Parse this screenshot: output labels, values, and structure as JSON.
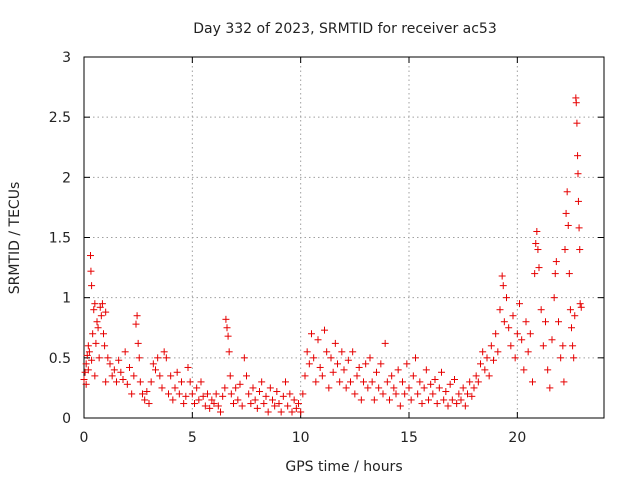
{
  "chart_data": {
    "type": "scatter",
    "title": "Day 332 of 2023, SRMTID for receiver ac53",
    "xlabel": "GPS time / hours",
    "ylabel": "SRMTID / TECUs",
    "xlim": [
      0,
      24
    ],
    "ylim": [
      0,
      3
    ],
    "x_ticks": [
      0,
      5,
      10,
      15,
      20
    ],
    "x_tick_labels": [
      "0",
      "5",
      "10",
      "15",
      "20"
    ],
    "y_ticks": [
      0,
      0.5,
      1,
      1.5,
      2,
      2.5,
      3
    ],
    "y_tick_labels": [
      "0",
      "0.5",
      "1",
      "1.5",
      "2",
      "2.5",
      "3"
    ],
    "grid": true,
    "marker": "+",
    "color": "#e60000",
    "series": [
      {
        "name": "SRMTID",
        "points": [
          [
            0.0,
            0.32
          ],
          [
            0.05,
            0.38
          ],
          [
            0.1,
            0.45
          ],
          [
            0.1,
            0.28
          ],
          [
            0.15,
            0.52
          ],
          [
            0.2,
            0.6
          ],
          [
            0.2,
            0.4
          ],
          [
            0.25,
            0.55
          ],
          [
            0.3,
            1.35
          ],
          [
            0.32,
            1.22
          ],
          [
            0.35,
            1.1
          ],
          [
            0.35,
            0.48
          ],
          [
            0.4,
            0.7
          ],
          [
            0.45,
            0.9
          ],
          [
            0.5,
            0.95
          ],
          [
            0.5,
            0.35
          ],
          [
            0.55,
            0.62
          ],
          [
            0.6,
            0.8
          ],
          [
            0.65,
            0.75
          ],
          [
            0.7,
            0.5
          ],
          [
            0.75,
            0.92
          ],
          [
            0.8,
            0.85
          ],
          [
            0.85,
            0.95
          ],
          [
            0.9,
            0.7
          ],
          [
            0.95,
            0.6
          ],
          [
            1.0,
            0.88
          ],
          [
            1.0,
            0.3
          ],
          [
            1.1,
            0.5
          ],
          [
            1.2,
            0.45
          ],
          [
            1.3,
            0.35
          ],
          [
            1.4,
            0.4
          ],
          [
            1.5,
            0.3
          ],
          [
            1.6,
            0.48
          ],
          [
            1.7,
            0.38
          ],
          [
            1.8,
            0.32
          ],
          [
            1.9,
            0.55
          ],
          [
            2.0,
            0.28
          ],
          [
            2.1,
            0.42
          ],
          [
            2.2,
            0.2
          ],
          [
            2.3,
            0.35
          ],
          [
            2.4,
            0.78
          ],
          [
            2.45,
            0.85
          ],
          [
            2.5,
            0.62
          ],
          [
            2.55,
            0.5
          ],
          [
            2.6,
            0.3
          ],
          [
            2.7,
            0.2
          ],
          [
            2.8,
            0.15
          ],
          [
            2.9,
            0.22
          ],
          [
            3.0,
            0.12
          ],
          [
            3.1,
            0.3
          ],
          [
            3.2,
            0.45
          ],
          [
            3.3,
            0.4
          ],
          [
            3.4,
            0.5
          ],
          [
            3.5,
            0.35
          ],
          [
            3.6,
            0.25
          ],
          [
            3.7,
            0.55
          ],
          [
            3.8,
            0.5
          ],
          [
            3.9,
            0.2
          ],
          [
            4.0,
            0.35
          ],
          [
            4.1,
            0.15
          ],
          [
            4.2,
            0.25
          ],
          [
            4.3,
            0.38
          ],
          [
            4.4,
            0.2
          ],
          [
            4.5,
            0.3
          ],
          [
            4.6,
            0.12
          ],
          [
            4.7,
            0.18
          ],
          [
            4.8,
            0.42
          ],
          [
            4.9,
            0.3
          ],
          [
            5.0,
            0.2
          ],
          [
            5.1,
            0.12
          ],
          [
            5.2,
            0.25
          ],
          [
            5.3,
            0.15
          ],
          [
            5.4,
            0.3
          ],
          [
            5.5,
            0.18
          ],
          [
            5.6,
            0.1
          ],
          [
            5.7,
            0.2
          ],
          [
            5.8,
            0.08
          ],
          [
            5.9,
            0.15
          ],
          [
            6.0,
            0.12
          ],
          [
            6.1,
            0.2
          ],
          [
            6.2,
            0.1
          ],
          [
            6.3,
            0.05
          ],
          [
            6.4,
            0.18
          ],
          [
            6.5,
            0.25
          ],
          [
            6.55,
            0.82
          ],
          [
            6.6,
            0.75
          ],
          [
            6.65,
            0.68
          ],
          [
            6.7,
            0.55
          ],
          [
            6.75,
            0.35
          ],
          [
            6.8,
            0.2
          ],
          [
            6.9,
            0.12
          ],
          [
            7.0,
            0.25
          ],
          [
            7.1,
            0.15
          ],
          [
            7.2,
            0.28
          ],
          [
            7.3,
            0.1
          ],
          [
            7.4,
            0.5
          ],
          [
            7.5,
            0.35
          ],
          [
            7.6,
            0.2
          ],
          [
            7.7,
            0.12
          ],
          [
            7.8,
            0.25
          ],
          [
            7.9,
            0.15
          ],
          [
            8.0,
            0.08
          ],
          [
            8.1,
            0.22
          ],
          [
            8.2,
            0.3
          ],
          [
            8.3,
            0.12
          ],
          [
            8.4,
            0.18
          ],
          [
            8.5,
            0.05
          ],
          [
            8.6,
            0.25
          ],
          [
            8.7,
            0.15
          ],
          [
            8.8,
            0.1
          ],
          [
            8.9,
            0.22
          ],
          [
            9.0,
            0.12
          ],
          [
            9.1,
            0.05
          ],
          [
            9.2,
            0.18
          ],
          [
            9.3,
            0.3
          ],
          [
            9.4,
            0.1
          ],
          [
            9.5,
            0.2
          ],
          [
            9.6,
            0.05
          ],
          [
            9.7,
            0.15
          ],
          [
            9.8,
            0.08
          ],
          [
            9.9,
            0.12
          ],
          [
            10.0,
            0.05
          ],
          [
            10.1,
            0.2
          ],
          [
            10.2,
            0.35
          ],
          [
            10.3,
            0.55
          ],
          [
            10.4,
            0.45
          ],
          [
            10.5,
            0.7
          ],
          [
            10.6,
            0.5
          ],
          [
            10.7,
            0.3
          ],
          [
            10.8,
            0.65
          ],
          [
            10.9,
            0.42
          ],
          [
            11.0,
            0.35
          ],
          [
            11.1,
            0.73
          ],
          [
            11.2,
            0.55
          ],
          [
            11.3,
            0.25
          ],
          [
            11.4,
            0.5
          ],
          [
            11.5,
            0.38
          ],
          [
            11.6,
            0.62
          ],
          [
            11.7,
            0.45
          ],
          [
            11.8,
            0.3
          ],
          [
            11.9,
            0.55
          ],
          [
            12.0,
            0.4
          ],
          [
            12.1,
            0.25
          ],
          [
            12.2,
            0.48
          ],
          [
            12.3,
            0.3
          ],
          [
            12.4,
            0.55
          ],
          [
            12.5,
            0.2
          ],
          [
            12.6,
            0.35
          ],
          [
            12.7,
            0.42
          ],
          [
            12.8,
            0.15
          ],
          [
            12.9,
            0.3
          ],
          [
            13.0,
            0.45
          ],
          [
            13.1,
            0.25
          ],
          [
            13.2,
            0.5
          ],
          [
            13.3,
            0.3
          ],
          [
            13.4,
            0.15
          ],
          [
            13.5,
            0.38
          ],
          [
            13.6,
            0.25
          ],
          [
            13.7,
            0.45
          ],
          [
            13.8,
            0.2
          ],
          [
            13.9,
            0.62
          ],
          [
            14.0,
            0.3
          ],
          [
            14.1,
            0.15
          ],
          [
            14.2,
            0.35
          ],
          [
            14.3,
            0.25
          ],
          [
            14.4,
            0.2
          ],
          [
            14.5,
            0.4
          ],
          [
            14.6,
            0.1
          ],
          [
            14.7,
            0.3
          ],
          [
            14.8,
            0.2
          ],
          [
            14.9,
            0.45
          ],
          [
            15.0,
            0.25
          ],
          [
            15.1,
            0.15
          ],
          [
            15.2,
            0.35
          ],
          [
            15.3,
            0.5
          ],
          [
            15.4,
            0.2
          ],
          [
            15.5,
            0.3
          ],
          [
            15.6,
            0.12
          ],
          [
            15.7,
            0.25
          ],
          [
            15.8,
            0.4
          ],
          [
            15.9,
            0.15
          ],
          [
            16.0,
            0.28
          ],
          [
            16.1,
            0.2
          ],
          [
            16.2,
            0.32
          ],
          [
            16.3,
            0.12
          ],
          [
            16.4,
            0.25
          ],
          [
            16.5,
            0.38
          ],
          [
            16.6,
            0.15
          ],
          [
            16.7,
            0.22
          ],
          [
            16.8,
            0.1
          ],
          [
            16.9,
            0.28
          ],
          [
            17.0,
            0.15
          ],
          [
            17.1,
            0.32
          ],
          [
            17.2,
            0.12
          ],
          [
            17.3,
            0.2
          ],
          [
            17.4,
            0.15
          ],
          [
            17.5,
            0.25
          ],
          [
            17.6,
            0.1
          ],
          [
            17.7,
            0.2
          ],
          [
            17.8,
            0.3
          ],
          [
            17.9,
            0.18
          ],
          [
            18.0,
            0.25
          ],
          [
            18.1,
            0.35
          ],
          [
            18.2,
            0.3
          ],
          [
            18.3,
            0.45
          ],
          [
            18.4,
            0.55
          ],
          [
            18.5,
            0.4
          ],
          [
            18.6,
            0.5
          ],
          [
            18.7,
            0.35
          ],
          [
            18.8,
            0.6
          ],
          [
            18.9,
            0.48
          ],
          [
            19.0,
            0.7
          ],
          [
            19.1,
            0.55
          ],
          [
            19.2,
            0.9
          ],
          [
            19.3,
            1.18
          ],
          [
            19.35,
            1.1
          ],
          [
            19.4,
            0.8
          ],
          [
            19.5,
            1.0
          ],
          [
            19.6,
            0.75
          ],
          [
            19.7,
            0.6
          ],
          [
            19.8,
            0.85
          ],
          [
            19.9,
            0.5
          ],
          [
            20.0,
            0.7
          ],
          [
            20.1,
            0.95
          ],
          [
            20.2,
            0.65
          ],
          [
            20.3,
            0.4
          ],
          [
            20.4,
            0.8
          ],
          [
            20.5,
            0.55
          ],
          [
            20.6,
            0.7
          ],
          [
            20.7,
            0.3
          ],
          [
            20.8,
            1.2
          ],
          [
            20.85,
            1.45
          ],
          [
            20.9,
            1.55
          ],
          [
            20.95,
            1.4
          ],
          [
            21.0,
            1.25
          ],
          [
            21.1,
            0.9
          ],
          [
            21.2,
            0.6
          ],
          [
            21.3,
            0.8
          ],
          [
            21.4,
            0.4
          ],
          [
            21.5,
            0.25
          ],
          [
            21.6,
            0.65
          ],
          [
            21.7,
            1.0
          ],
          [
            21.75,
            1.2
          ],
          [
            21.8,
            1.3
          ],
          [
            21.9,
            0.8
          ],
          [
            22.0,
            0.5
          ],
          [
            22.1,
            0.6
          ],
          [
            22.15,
            0.3
          ],
          [
            22.2,
            1.4
          ],
          [
            22.25,
            1.7
          ],
          [
            22.3,
            1.88
          ],
          [
            22.35,
            1.6
          ],
          [
            22.4,
            1.2
          ],
          [
            22.45,
            0.9
          ],
          [
            22.5,
            0.75
          ],
          [
            22.55,
            0.6
          ],
          [
            22.6,
            0.5
          ],
          [
            22.65,
            0.85
          ],
          [
            22.7,
            2.66
          ],
          [
            22.72,
            2.62
          ],
          [
            22.75,
            2.45
          ],
          [
            22.78,
            2.18
          ],
          [
            22.8,
            2.03
          ],
          [
            22.82,
            1.8
          ],
          [
            22.85,
            1.58
          ],
          [
            22.88,
            1.4
          ],
          [
            22.9,
            0.95
          ],
          [
            22.95,
            0.92
          ]
        ]
      }
    ]
  }
}
